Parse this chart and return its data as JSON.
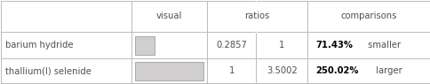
{
  "rows": [
    {
      "name": "barium hydride",
      "ratio1": "0.2857",
      "ratio2": "1",
      "bar_fill": 0.2857,
      "comparison_pct": "71.43%",
      "comparison_word": "smaller",
      "bar_color": "#d0cece"
    },
    {
      "name": "thallium(I) selenide",
      "ratio1": "1",
      "ratio2": "3.5002",
      "bar_fill": 1.0,
      "comparison_pct": "250.02%",
      "comparison_word": "larger",
      "bar_color": "#d0cece"
    }
  ],
  "background": "#ffffff",
  "text_color": "#505050",
  "bold_color": "#000000",
  "grid_color": "#bbbbbb",
  "figsize": [
    4.85,
    0.95
  ],
  "dpi": 100,
  "col_bounds": [
    0.0,
    0.305,
    0.48,
    0.595,
    0.715,
    1.0
  ],
  "row_bounds": [
    1.0,
    0.62,
    0.3,
    0.0
  ],
  "font_size": 7.2
}
